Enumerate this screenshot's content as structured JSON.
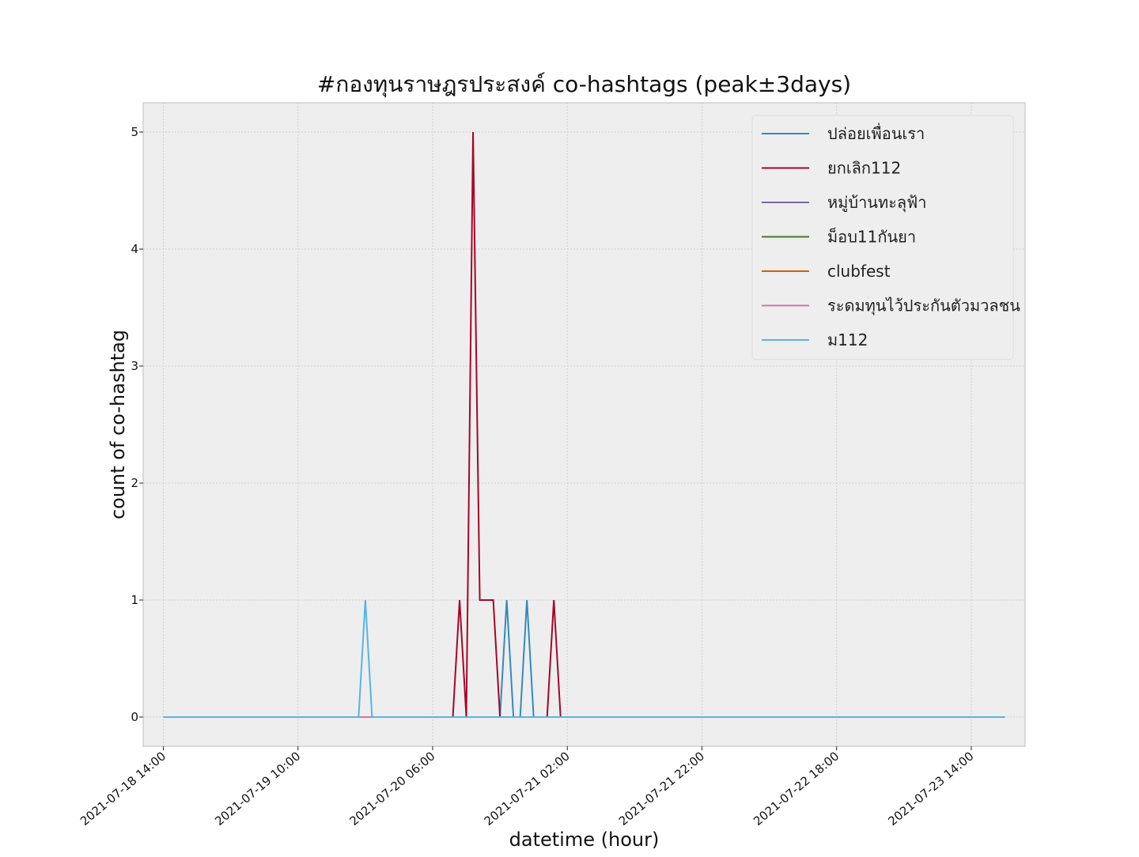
{
  "chart_data": {
    "type": "line",
    "title": "#กองทุนราษฎรประสงค์ co-hashtags (peak±3days)",
    "xlabel": "datetime (hour)",
    "ylabel": "count of co-hashtag",
    "x_start": "2021-07-18 14:00",
    "x_end": "2021-07-23 19:00",
    "x_step_hours": 1,
    "xlim": [
      "2021-07-18 11:00",
      "2021-07-23 22:00"
    ],
    "ylim": [
      -0.25,
      5.25
    ],
    "x_ticks": [
      "2021-07-18 14:00",
      "2021-07-19 10:00",
      "2021-07-20 06:00",
      "2021-07-21 02:00",
      "2021-07-21 22:00",
      "2021-07-22 18:00",
      "2021-07-23 14:00"
    ],
    "y_ticks": [
      0,
      1,
      2,
      3,
      4,
      5
    ],
    "grid": true,
    "legend_position": "top-right",
    "series": [
      {
        "name": "ปล่อยเพื่อนเรา",
        "color": "#348abd",
        "points": [
          [
            "2021-07-18 14:00",
            0
          ],
          [
            "2021-07-20 16:00",
            0
          ],
          [
            "2021-07-20 17:00",
            1
          ],
          [
            "2021-07-20 18:00",
            0
          ],
          [
            "2021-07-20 19:00",
            0
          ],
          [
            "2021-07-20 20:00",
            1
          ],
          [
            "2021-07-20 21:00",
            0
          ],
          [
            "2021-07-23 19:00",
            0
          ]
        ]
      },
      {
        "name": "ยกเลิก112",
        "color": "#a60628",
        "points": [
          [
            "2021-07-18 14:00",
            0
          ],
          [
            "2021-07-20 09:00",
            0
          ],
          [
            "2021-07-20 10:00",
            1
          ],
          [
            "2021-07-20 11:00",
            0
          ],
          [
            "2021-07-20 12:00",
            5
          ],
          [
            "2021-07-20 13:00",
            1
          ],
          [
            "2021-07-20 15:00",
            1
          ],
          [
            "2021-07-20 16:00",
            0
          ],
          [
            "2021-07-20 23:00",
            0
          ],
          [
            "2021-07-21 00:00",
            1
          ],
          [
            "2021-07-21 01:00",
            0
          ],
          [
            "2021-07-23 19:00",
            0
          ]
        ]
      },
      {
        "name": "หมู่บ้านทะลุฟ้า",
        "color": "#7a68a6",
        "points": [
          [
            "2021-07-18 14:00",
            0
          ],
          [
            "2021-07-23 19:00",
            0
          ]
        ]
      },
      {
        "name": "ม็อบ11กันยา",
        "color": "#467821",
        "points": [
          [
            "2021-07-18 14:00",
            0
          ],
          [
            "2021-07-23 19:00",
            0
          ]
        ]
      },
      {
        "name": "clubfest",
        "color": "#d55e00",
        "points": [
          [
            "2021-07-18 14:00",
            0
          ],
          [
            "2021-07-23 19:00",
            0
          ]
        ]
      },
      {
        "name": "ระดมทุนไว้ประกันตัวมวลชน",
        "color": "#cc79a7",
        "points": [
          [
            "2021-07-18 14:00",
            0
          ],
          [
            "2021-07-23 19:00",
            0
          ]
        ]
      },
      {
        "name": "ม112",
        "color": "#56b4e9",
        "points": [
          [
            "2021-07-18 14:00",
            0
          ],
          [
            "2021-07-19 19:00",
            0
          ],
          [
            "2021-07-19 20:00",
            1
          ],
          [
            "2021-07-19 21:00",
            0
          ],
          [
            "2021-07-23 19:00",
            0
          ]
        ]
      }
    ]
  }
}
